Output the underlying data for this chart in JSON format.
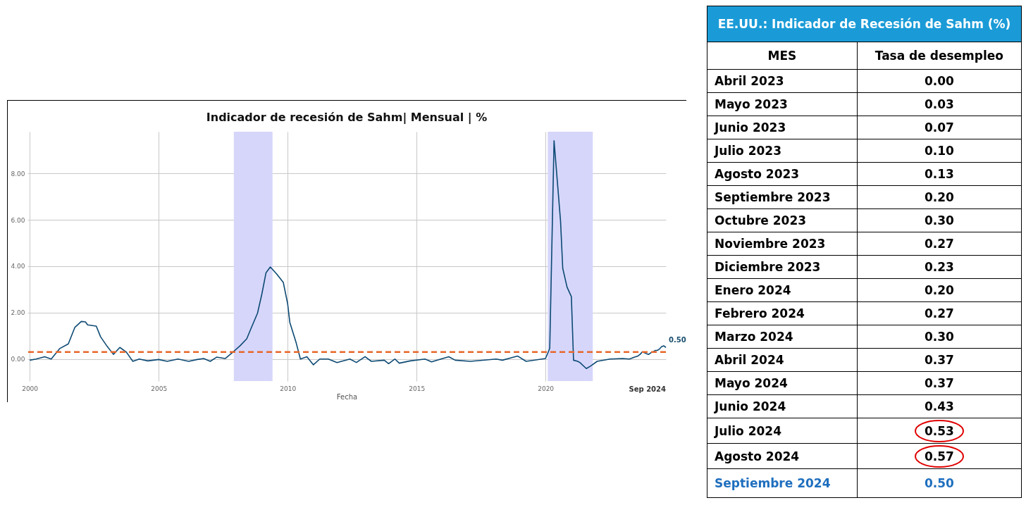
{
  "chart_data": [
    {
      "type": "line",
      "title": "Indicador de recesión de Sahm| Mensual | %",
      "xlabel": "Fecha",
      "xlim": [
        "1999-12",
        "2024-09"
      ],
      "xticks": [
        "2000",
        "2005",
        "2010",
        "2015",
        "2020"
      ],
      "ylim": [
        -0.95,
        9.8
      ],
      "yticks": [
        {
          "value": 0,
          "label": "0.00"
        },
        {
          "value": 2,
          "label": "2.00"
        },
        {
          "value": 4,
          "label": "4.00"
        },
        {
          "value": 6,
          "label": "6.00"
        },
        {
          "value": 8,
          "label": "8.00"
        }
      ],
      "grid": true,
      "line_style": "solid",
      "marker": "none",
      "bands": [
        {
          "axis": "x",
          "from": "2007-12",
          "to": "2009-06",
          "color": "#d6d6fb"
        },
        {
          "axis": "x",
          "from": "2020-02",
          "to": "2021-11",
          "color": "#d6d6fb"
        }
      ],
      "ref_lines": [
        {
          "axis": "y",
          "value": 0.3,
          "color": "#e8672a",
          "line_style": "dashed"
        }
      ],
      "annotations": [
        {
          "text": "0.50",
          "x": "2024-09",
          "y": 0.5
        },
        "Sep 2024"
      ],
      "series": [
        {
          "color": "#0d4a73",
          "x": [
            "2000-01",
            "2000-04",
            "2000-08",
            "2000-11",
            "2001-03",
            "2001-07",
            "2001-10",
            "2002-01",
            "2002-03",
            "2002-04",
            "2002-08",
            "2002-10",
            "2003-01",
            "2003-04",
            "2003-07",
            "2003-10",
            "2004-01",
            "2004-04",
            "2004-08",
            "2005-01",
            "2005-05",
            "2005-10",
            "2006-03",
            "2006-07",
            "2006-10",
            "2007-01",
            "2007-04",
            "2007-08",
            "2007-11",
            "2008-03",
            "2008-06",
            "2008-08",
            "2008-11",
            "2009-01",
            "2009-03",
            "2009-05",
            "2009-08",
            "2009-11",
            "2010-01",
            "2010-02",
            "2010-05",
            "2010-07",
            "2010-10",
            "2011-01",
            "2011-04",
            "2011-08",
            "2011-12",
            "2012-06",
            "2012-09",
            "2013-01",
            "2013-04",
            "2013-10",
            "2013-12",
            "2014-03",
            "2014-05",
            "2014-10",
            "2015-05",
            "2015-08",
            "2016-04",
            "2016-07",
            "2017-02",
            "2018-02",
            "2018-05",
            "2018-12",
            "2019-04",
            "2020-01",
            "2020-03",
            "2020-05",
            "2020-08",
            "2020-09",
            "2020-11",
            "2021-01",
            "2021-02",
            "2021-04",
            "2021-05",
            "2021-08",
            "2021-10",
            "2022-01",
            "2022-07",
            "2023-01",
            "2023-04",
            "2023-05",
            "2023-06",
            "2023-07",
            "2023-08",
            "2023-09",
            "2023-10",
            "2023-11",
            "2023-12",
            "2024-01",
            "2024-02",
            "2024-03",
            "2024-04",
            "2024-05",
            "2024-06",
            "2024-07",
            "2024-08",
            "2024-09"
          ],
          "values": [
            -0.05,
            0,
            0.1,
            0,
            0.45,
            0.65,
            1.36,
            1.62,
            1.6,
            1.47,
            1.42,
            0.96,
            0.55,
            0.2,
            0.5,
            0.3,
            -0.1,
            0,
            -0.08,
            -0.02,
            -0.1,
            0,
            -0.1,
            -0.02,
            0.02,
            -0.1,
            0.08,
            0.02,
            0.25,
            0.58,
            0.87,
            1.32,
            1.98,
            2.8,
            3.72,
            3.97,
            3.66,
            3.3,
            2.39,
            1.58,
            0.71,
            0,
            0.1,
            -0.25,
            0,
            0,
            -0.15,
            0,
            -0.15,
            0.1,
            -0.1,
            -0.05,
            -0.2,
            0,
            -0.18,
            -0.08,
            0,
            -0.12,
            0.1,
            -0.05,
            -0.1,
            0,
            -0.05,
            0.13,
            -0.1,
            0.02,
            0.46,
            9.41,
            5.94,
            3.91,
            3.1,
            2.69,
            -0.05,
            -0.1,
            -0.15,
            -0.41,
            -0.3,
            -0.1,
            0,
            0.02,
            0,
            0.03,
            0.07,
            0.1,
            0.13,
            0.2,
            0.3,
            0.27,
            0.23,
            0.2,
            0.27,
            0.3,
            0.37,
            0.37,
            0.43,
            0.53,
            0.57,
            0.5
          ]
        }
      ]
    },
    {
      "type": "other",
      "title": "EE.UU.: Indicador de Recesión de Sahm (%)",
      "xlabel": "MES",
      "ylabel": "Tasa de desempleo",
      "categories": [
        "Abril 2023",
        "Mayo 2023",
        "Junio 2023",
        "Julio 2023",
        "Agosto 2023",
        "Septiembre 2023",
        "Octubre 2023",
        "Noviembre 2023",
        "Diciembre 2023",
        "Enero 2024",
        "Febrero 2024",
        "Marzo 2024",
        "Abril 2024",
        "Mayo 2024",
        "Junio 2024",
        "Julio 2024",
        "Agosto 2024",
        "Septiembre 2024"
      ],
      "value_labels": [
        "0.00",
        "0.03",
        "0.07",
        "0.10",
        "0.13",
        "0.20",
        "0.30",
        "0.27",
        "0.23",
        "0.20",
        "0.27",
        "0.30",
        "0.37",
        "0.37",
        "0.43",
        "0.53",
        "0.57",
        "0.50"
      ],
      "colors": [
        "#000000",
        "#000000",
        "#000000",
        "#000000",
        "#000000",
        "#000000",
        "#000000",
        "#000000",
        "#000000",
        "#000000",
        "#000000",
        "#000000",
        "#000000",
        "#000000",
        "#000000",
        "#000000",
        "#000000",
        "#1f6fbf"
      ]
    }
  ]
}
